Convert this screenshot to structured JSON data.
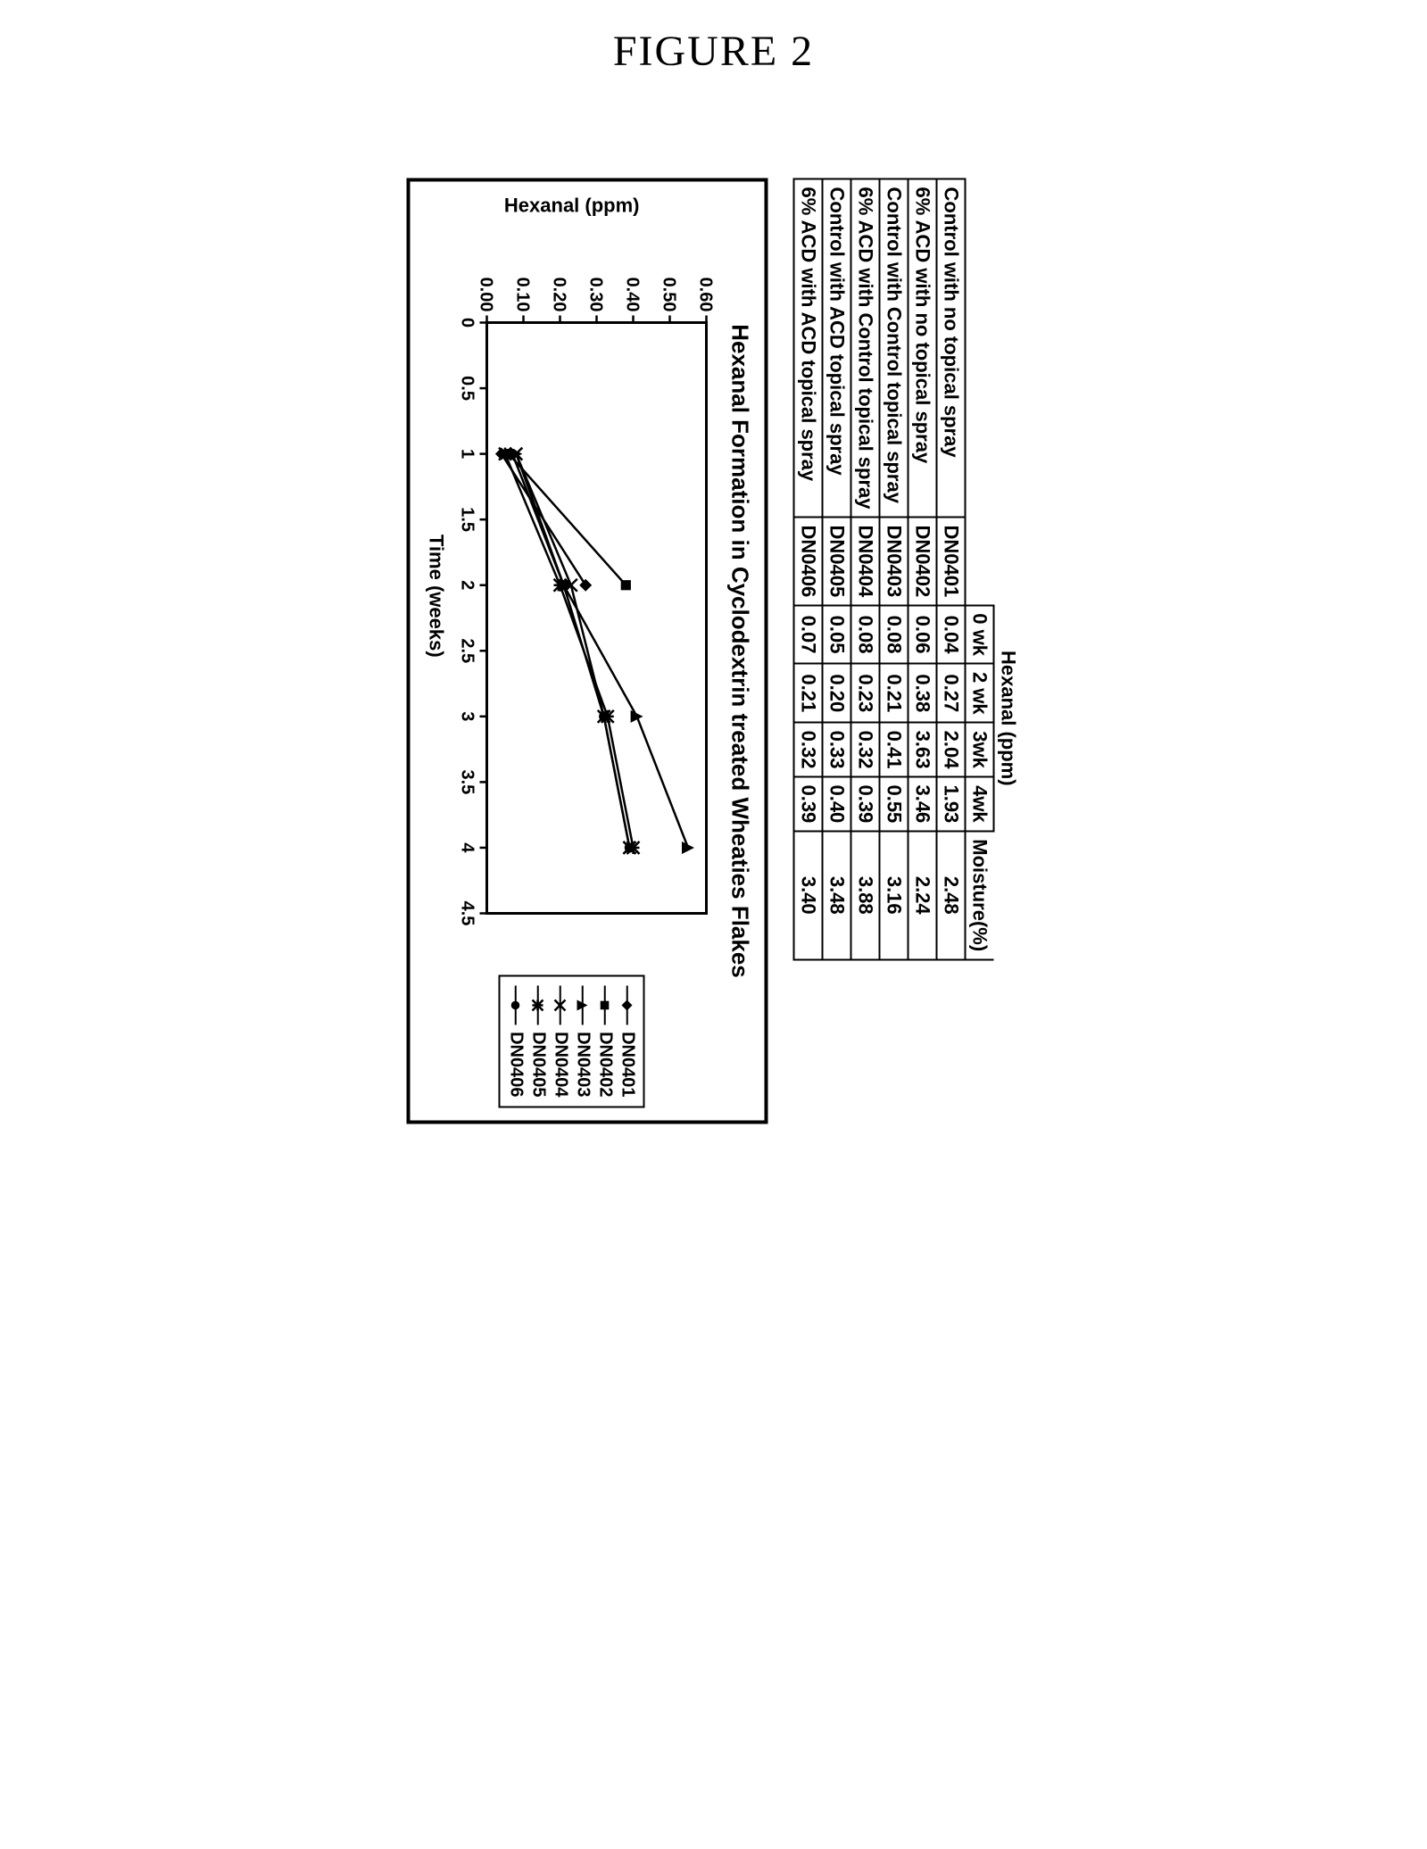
{
  "figure_label": "FIGURE 2",
  "table": {
    "spanning_header": "Hexanal (ppm)",
    "columns_time": [
      "0 wk",
      "2 wk",
      "3wk",
      "4wk"
    ],
    "column_moisture": "Moisture(%)",
    "rows": [
      {
        "desc": "Control with no topical spray",
        "code": "DN0401",
        "wk": [
          "0.04",
          "0.27",
          "2.04",
          "1.93"
        ],
        "moist": "2.48"
      },
      {
        "desc": "6% ACD with no topical spray",
        "code": "DN0402",
        "wk": [
          "0.06",
          "0.38",
          "3.63",
          "3.46"
        ],
        "moist": "2.24"
      },
      {
        "desc": "Control with Control topical spray",
        "code": "DN0403",
        "wk": [
          "0.08",
          "0.21",
          "0.41",
          "0.55"
        ],
        "moist": "3.16"
      },
      {
        "desc": "6% ACD with Control topical spray",
        "code": "DN0404",
        "wk": [
          "0.08",
          "0.23",
          "0.32",
          "0.39"
        ],
        "moist": "3.88"
      },
      {
        "desc": "Control with ACD topical spray",
        "code": "DN0405",
        "wk": [
          "0.05",
          "0.20",
          "0.33",
          "0.40"
        ],
        "moist": "3.48"
      },
      {
        "desc": "6% ACD with ACD topical spray",
        "code": "DN0406",
        "wk": [
          "0.07",
          "0.21",
          "0.32",
          "0.39"
        ],
        "moist": "3.40"
      }
    ]
  },
  "chart": {
    "title": "Hexanal Formation in Cyclodextrin treated Wheaties Flakes",
    "xlabel": "Time (weeks)",
    "ylabel": "Hexanal (ppm)",
    "xlim": [
      0,
      4.5
    ],
    "xtick_step": 0.5,
    "xticks": [
      "0",
      "0.5",
      "1",
      "1.5",
      "2",
      "2.5",
      "3",
      "3.5",
      "4",
      "4.5"
    ],
    "ylim": [
      0.0,
      0.6
    ],
    "ytick_step": 0.1,
    "yticks": [
      "0.00",
      "0.10",
      "0.20",
      "0.30",
      "0.40",
      "0.50",
      "0.60"
    ],
    "background_color": "#ffffff",
    "axis_color": "#000000",
    "line_color": "#000000",
    "line_width": 2.5,
    "tick_fontsize": 20,
    "series": [
      {
        "id": "DN0401",
        "marker": "diamond",
        "points": [
          [
            1,
            0.04
          ],
          [
            2,
            0.27
          ]
        ]
      },
      {
        "id": "DN0402",
        "marker": "square",
        "points": [
          [
            1,
            0.06
          ],
          [
            2,
            0.38
          ]
        ]
      },
      {
        "id": "DN0403",
        "marker": "triangle",
        "points": [
          [
            1,
            0.08
          ],
          [
            2,
            0.21
          ],
          [
            3,
            0.41
          ],
          [
            4,
            0.55
          ]
        ]
      },
      {
        "id": "DN0404",
        "marker": "x",
        "points": [
          [
            1,
            0.08
          ],
          [
            2,
            0.23
          ],
          [
            3,
            0.32
          ],
          [
            4,
            0.39
          ]
        ]
      },
      {
        "id": "DN0405",
        "marker": "asterisk",
        "points": [
          [
            1,
            0.05
          ],
          [
            2,
            0.2
          ],
          [
            3,
            0.33
          ],
          [
            4,
            0.4
          ]
        ]
      },
      {
        "id": "DN0406",
        "marker": "circle",
        "points": [
          [
            1,
            0.07
          ],
          [
            2,
            0.21
          ],
          [
            3,
            0.32
          ],
          [
            4,
            0.39
          ]
        ]
      }
    ],
    "legend": [
      "DN0401",
      "DN0402",
      "DN0403",
      "DN0404",
      "DN0405",
      "DN0406"
    ],
    "legend_markers": [
      "diamond",
      "square",
      "triangle",
      "x",
      "asterisk",
      "circle"
    ]
  }
}
